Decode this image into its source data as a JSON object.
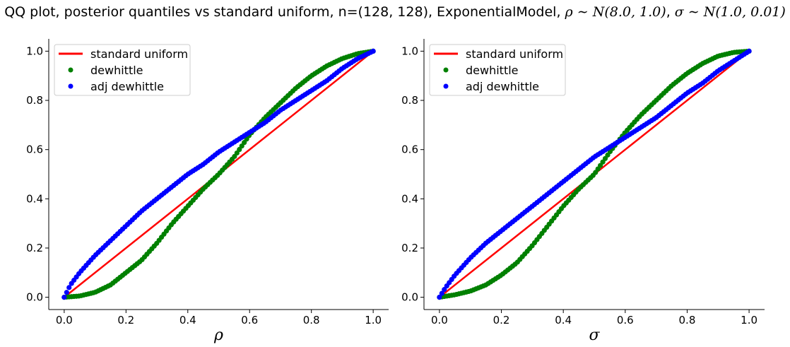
{
  "figure": {
    "title_prefix": "QQ plot, posterior quantiles vs standard uniform, n=(128, 128), ExponentialModel, ",
    "title_math_1": "ρ ∼ N(8.0, 1.0)",
    "title_sep": ", ",
    "title_math_2": "σ ∼ N(1.0, 0.01)"
  },
  "colors": {
    "uniform": "#ff0000",
    "dewhittle": "#008000",
    "adj_dewhittle": "#0000ff"
  },
  "chart_data": [
    {
      "type": "scatter",
      "xlabel": "ρ",
      "ylabel": "",
      "xlim": [
        -0.05,
        1.05
      ],
      "ylim": [
        -0.05,
        1.05
      ],
      "xticks": [
        "0.0",
        "0.2",
        "0.4",
        "0.6",
        "0.8",
        "1.0"
      ],
      "yticks": [
        "0.0",
        "0.2",
        "0.4",
        "0.6",
        "0.8",
        "1.0"
      ],
      "grid": false,
      "legend": {
        "position": "top-left",
        "entries": [
          "standard uniform",
          "dewhittle",
          "adj dewhittle"
        ]
      },
      "series": [
        {
          "name": "standard uniform",
          "kind": "line",
          "x": [
            0,
            1
          ],
          "y": [
            0,
            1
          ]
        },
        {
          "name": "dewhittle",
          "kind": "scatter",
          "x": [
            0.0,
            0.05,
            0.1,
            0.15,
            0.2,
            0.25,
            0.3,
            0.35,
            0.4,
            0.45,
            0.5,
            0.55,
            0.6,
            0.65,
            0.7,
            0.75,
            0.8,
            0.85,
            0.9,
            0.95,
            1.0
          ],
          "y": [
            0.0,
            0.005,
            0.02,
            0.05,
            0.1,
            0.15,
            0.22,
            0.3,
            0.37,
            0.44,
            0.5,
            0.57,
            0.66,
            0.73,
            0.79,
            0.85,
            0.9,
            0.94,
            0.97,
            0.99,
            1.0
          ]
        },
        {
          "name": "adj dewhittle",
          "kind": "scatter",
          "x": [
            0.0,
            0.02,
            0.05,
            0.1,
            0.15,
            0.2,
            0.25,
            0.3,
            0.35,
            0.4,
            0.45,
            0.5,
            0.55,
            0.6,
            0.65,
            0.7,
            0.75,
            0.8,
            0.85,
            0.9,
            0.95,
            1.0
          ],
          "y": [
            0.0,
            0.05,
            0.1,
            0.17,
            0.23,
            0.29,
            0.35,
            0.4,
            0.45,
            0.5,
            0.54,
            0.59,
            0.63,
            0.67,
            0.71,
            0.76,
            0.8,
            0.84,
            0.88,
            0.93,
            0.97,
            1.0
          ]
        }
      ]
    },
    {
      "type": "scatter",
      "xlabel": "σ",
      "ylabel": "",
      "xlim": [
        -0.05,
        1.05
      ],
      "ylim": [
        -0.05,
        1.05
      ],
      "xticks": [
        "0.0",
        "0.2",
        "0.4",
        "0.6",
        "0.8",
        "1.0"
      ],
      "yticks": [
        "0.0",
        "0.2",
        "0.4",
        "0.6",
        "0.8",
        "1.0"
      ],
      "grid": false,
      "legend": {
        "position": "top-left",
        "entries": [
          "standard uniform",
          "dewhittle",
          "adj dewhittle"
        ]
      },
      "series": [
        {
          "name": "standard uniform",
          "kind": "line",
          "x": [
            0,
            1
          ],
          "y": [
            0,
            1
          ]
        },
        {
          "name": "dewhittle",
          "kind": "scatter",
          "x": [
            0.0,
            0.05,
            0.1,
            0.15,
            0.2,
            0.25,
            0.3,
            0.35,
            0.4,
            0.45,
            0.5,
            0.55,
            0.6,
            0.65,
            0.7,
            0.75,
            0.8,
            0.85,
            0.9,
            0.95,
            1.0
          ],
          "y": [
            0.0,
            0.01,
            0.025,
            0.05,
            0.09,
            0.14,
            0.21,
            0.29,
            0.37,
            0.44,
            0.5,
            0.59,
            0.67,
            0.74,
            0.8,
            0.86,
            0.91,
            0.95,
            0.98,
            0.995,
            1.0
          ]
        },
        {
          "name": "adj dewhittle",
          "kind": "scatter",
          "x": [
            0.0,
            0.02,
            0.05,
            0.1,
            0.15,
            0.2,
            0.25,
            0.3,
            0.35,
            0.4,
            0.45,
            0.5,
            0.55,
            0.6,
            0.65,
            0.7,
            0.75,
            0.8,
            0.85,
            0.9,
            0.95,
            1.0
          ],
          "y": [
            0.0,
            0.04,
            0.09,
            0.16,
            0.22,
            0.27,
            0.32,
            0.37,
            0.42,
            0.47,
            0.52,
            0.57,
            0.61,
            0.65,
            0.69,
            0.73,
            0.78,
            0.83,
            0.87,
            0.92,
            0.96,
            1.0
          ]
        }
      ]
    }
  ]
}
